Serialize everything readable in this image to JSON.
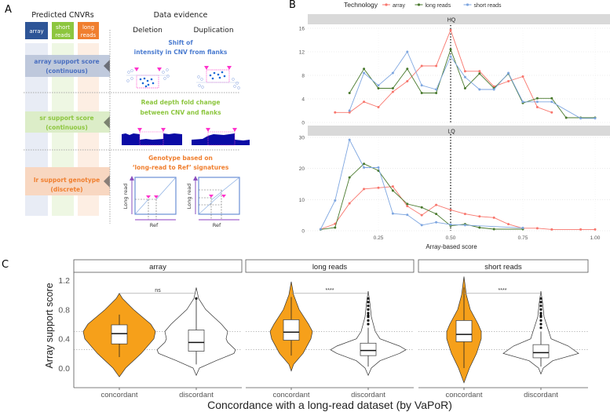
{
  "panel_labels": {
    "a": "A",
    "b": "B",
    "c": "C"
  },
  "panel_a": {
    "title_left": "Predicted CNVRs",
    "title_right": "Data evidence",
    "tech_boxes": [
      {
        "line1": "array",
        "line2": "",
        "color": "#2e5597"
      },
      {
        "line1": "short",
        "line2": "reads",
        "color": "#8dc63f"
      },
      {
        "line1": "long",
        "line2": "reads",
        "color": "#f07f2f"
      }
    ],
    "scores": [
      {
        "line1": "array support score",
        "line2": "(continuous)",
        "color": "#4a6fc0"
      },
      {
        "line1": "sr support score",
        "line2": "(continuous)",
        "color": "#8dc63f"
      },
      {
        "line1": "lr support genotype",
        "line2": "(discrete)",
        "color": "#f07f2f"
      }
    ],
    "columns": {
      "deletion": "Deletion",
      "duplication": "Duplication"
    },
    "evidence": [
      {
        "line1": "Shift of",
        "line2": "intensity in CNV from flanks"
      },
      {
        "line1": "Read depth fold change",
        "line2": "between CNV and flanks"
      },
      {
        "line1": "Genotype based on",
        "line2": "‘long-read to Ref’ signatures"
      }
    ],
    "dotplot_axes": {
      "y": "Long read",
      "x": "Ref"
    }
  },
  "chart_data": [
    {
      "type": "line",
      "title": "",
      "legend": {
        "title": "Technology",
        "placement": "top",
        "entries": [
          "array",
          "long reads",
          "short reads"
        ]
      },
      "colors": {
        "array": "#f8766d",
        "long reads": "#4a7a2e",
        "short reads": "#7ea6e0"
      },
      "xlabel": "Array-based score",
      "xlim": [
        0.05,
        1.0
      ],
      "x_ticks": [
        "0.25",
        "0.50",
        "0.75",
        "1.00"
      ],
      "x_tick_values": [
        0.25,
        0.5,
        0.75,
        1.0
      ],
      "reference_line_x": 0.5,
      "facets": [
        {
          "name": "HQ",
          "ylim": [
            0,
            16
          ],
          "y_ticks": [
            "0",
            "4",
            "8",
            "12",
            "16"
          ],
          "y_tick_values": [
            0,
            4,
            8,
            12,
            16
          ],
          "series": [
            {
              "name": "array",
              "x": [
                0.1,
                0.15,
                0.2,
                0.25,
                0.3,
                0.35,
                0.4,
                0.45,
                0.5,
                0.55,
                0.6,
                0.65,
                0.7,
                0.75,
                0.8,
                0.85
              ],
              "y": [
                1.7,
                1.7,
                3.5,
                2.6,
                5.2,
                7.0,
                9.6,
                9.6,
                15.7,
                8.7,
                8.7,
                6.1,
                7.0,
                7.8,
                2.6,
                1.7
              ]
            },
            {
              "name": "long reads",
              "x": [
                0.15,
                0.2,
                0.25,
                0.3,
                0.35,
                0.4,
                0.45,
                0.5,
                0.55,
                0.6,
                0.65,
                0.7,
                0.75,
                0.8,
                0.85,
                0.9,
                0.95,
                1.0
              ],
              "y": [
                5.0,
                9.1,
                5.8,
                5.8,
                9.1,
                5.0,
                5.0,
                12.4,
                5.8,
                8.3,
                5.8,
                8.3,
                3.3,
                4.1,
                4.1,
                0.8,
                0.8,
                0.8
              ]
            },
            {
              "name": "short reads",
              "x": [
                0.15,
                0.2,
                0.25,
                0.3,
                0.35,
                0.4,
                0.45,
                0.5,
                0.55,
                0.6,
                0.65,
                0.7,
                0.75,
                0.8,
                0.85,
                0.95,
                1.0
              ],
              "y": [
                2.0,
                8.4,
                6.3,
                8.4,
                12.0,
                6.3,
                5.6,
                11.2,
                7.7,
                5.6,
                5.6,
                8.4,
                3.5,
                3.5,
                3.5,
                0.7,
                0.7
              ]
            }
          ]
        },
        {
          "name": "LQ",
          "ylim": [
            0,
            30
          ],
          "y_ticks": [
            "0",
            "10",
            "20",
            "30"
          ],
          "y_tick_values": [
            0,
            10,
            20,
            30
          ],
          "series": [
            {
              "name": "array",
              "x": [
                0.05,
                0.1,
                0.15,
                0.2,
                0.25,
                0.3,
                0.35,
                0.4,
                0.45,
                0.5,
                0.55,
                0.6,
                0.65,
                0.7,
                0.75,
                0.8,
                0.85,
                0.95,
                1.0
              ],
              "y": [
                0.5,
                2.2,
                8.8,
                13.4,
                13.8,
                14.2,
                7.9,
                5.0,
                8.3,
                6.7,
                5.4,
                4.6,
                4.2,
                2.1,
                0.8,
                0.8,
                0.4,
                0.4,
                0.4
              ]
            },
            {
              "name": "long reads",
              "x": [
                0.05,
                0.1,
                0.15,
                0.2,
                0.25,
                0.3,
                0.35,
                0.4,
                0.45,
                0.5,
                0.55,
                0.6,
                0.65,
                0.75
              ],
              "y": [
                0.4,
                1.0,
                17.1,
                21.5,
                19.3,
                12.9,
                8.6,
                7.5,
                5.4,
                1.6,
                2.1,
                1.0,
                0.5,
                0.5
              ]
            },
            {
              "name": "short reads",
              "x": [
                0.05,
                0.1,
                0.15,
                0.2,
                0.25,
                0.3,
                0.35,
                0.4,
                0.45,
                0.5,
                0.55,
                0.75
              ],
              "y": [
                0.5,
                9.7,
                29.2,
                20.3,
                20.3,
                5.5,
                5.1,
                1.8,
                2.7,
                2.0,
                1.8,
                0.9
              ]
            }
          ]
        }
      ]
    },
    {
      "type": "violin",
      "xlabel": "Concordance with a long-read dataset (by VaPoR)",
      "ylabel": "Array support score",
      "ylim": [
        -0.2,
        1.3
      ],
      "y_ticks": [
        "0.0",
        "0.4",
        "0.8",
        "1.2"
      ],
      "y_tick_values": [
        0,
        0.4,
        0.8,
        1.2
      ],
      "reference_lines_y": [
        0.25,
        0.5
      ],
      "fill_colors": {
        "concordant": "#f6a01a",
        "discordant": "#ffffff"
      },
      "facets": [
        {
          "name": "array",
          "significance": "ns",
          "groups": [
            {
              "label": "concordant",
              "q1": 0.33,
              "median": 0.47,
              "q3": 0.59,
              "whisker_low": 0.15,
              "whisker_high": 0.73,
              "min": -0.12,
              "max": 1.02,
              "outliers": []
            },
            {
              "label": "discordant",
              "q1": 0.23,
              "median": 0.35,
              "q3": 0.52,
              "whisker_low": 0.05,
              "whisker_high": 0.94,
              "min": -0.1,
              "max": 1.1,
              "outliers": [
                0.95
              ]
            }
          ]
        },
        {
          "name": "long reads",
          "significance": "****",
          "groups": [
            {
              "label": "concordant",
              "q1": 0.38,
              "median": 0.49,
              "q3": 0.66,
              "whisker_low": 0.17,
              "whisker_high": 0.97,
              "min": -0.04,
              "max": 1.18,
              "outliers": []
            },
            {
              "label": "discordant",
              "q1": 0.17,
              "median": 0.24,
              "q3": 0.34,
              "whisker_low": 0.02,
              "whisker_high": 0.55,
              "min": -0.1,
              "max": 1.05,
              "outliers": [
                0.6,
                0.65,
                0.7,
                0.72,
                0.75,
                0.8,
                0.85,
                0.9,
                0.95
              ]
            }
          ]
        },
        {
          "name": "short reads",
          "significance": "****",
          "groups": [
            {
              "label": "concordant",
              "q1": 0.36,
              "median": 0.46,
              "q3": 0.65,
              "whisker_low": 0.0,
              "whisker_high": 1.1,
              "min": -0.2,
              "max": 1.25,
              "outliers": []
            },
            {
              "label": "discordant",
              "q1": 0.14,
              "median": 0.21,
              "q3": 0.32,
              "whisker_low": 0.02,
              "whisker_high": 0.5,
              "min": -0.08,
              "max": 1.05,
              "outliers": [
                0.55,
                0.6,
                0.65,
                0.7,
                0.72,
                0.75,
                0.8,
                0.85,
                0.9,
                0.95
              ]
            }
          ]
        }
      ]
    }
  ]
}
